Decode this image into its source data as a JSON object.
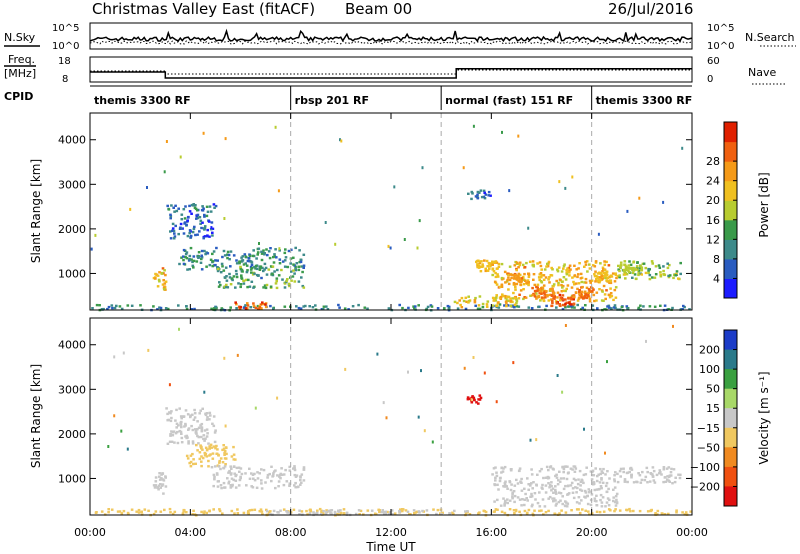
{
  "header": {
    "title": "Christmas Valley East (fitACF)",
    "beam": "Beam 00",
    "date": "26/Jul/2016"
  },
  "noise_panel": {
    "left_label": "N.Sky",
    "left_ticks": [
      "10^5",
      "10^0"
    ],
    "right_ticks": [
      "10^5",
      "10^0"
    ],
    "right_label": "N.Search"
  },
  "freq_panel": {
    "left_label_1": "Freq.",
    "left_label_2": "[MHz]",
    "left_ticks": [
      "18",
      "8"
    ],
    "right_ticks": [
      "60",
      "0"
    ],
    "right_label": "Nave"
  },
  "cpid_panel": {
    "label": "CPID",
    "segments": [
      {
        "name": "themis 3300 RF",
        "start_hour": 0,
        "end_hour": 8
      },
      {
        "name": "rbsp 201 RF",
        "start_hour": 8,
        "end_hour": 14
      },
      {
        "name": "normal (fast) 151 RF",
        "start_hour": 14,
        "end_hour": 20
      },
      {
        "name": "themis 3300 RF",
        "start_hour": 20,
        "end_hour": 24
      }
    ]
  },
  "x_axis": {
    "label": "Time UT",
    "ticks": [
      "00:00",
      "04:00",
      "08:00",
      "12:00",
      "16:00",
      "20:00",
      "00:00"
    ],
    "range_hours": [
      0,
      24
    ]
  },
  "power_colorbar": {
    "label": "Power [dB]",
    "ticks": [
      "4",
      "8",
      "12",
      "16",
      "20",
      "24",
      "28"
    ],
    "colors": [
      "#1c1cff",
      "#2a5cc0",
      "#3d8a8a",
      "#3a9a4a",
      "#b8cc30",
      "#f0c020",
      "#f59a18",
      "#f06010",
      "#e02000"
    ]
  },
  "velocity_colorbar": {
    "label": "Velocity [m s⁻¹]",
    "ticks": [
      "200",
      "100",
      "50",
      "15",
      "−15",
      "−50",
      "−100",
      "−200"
    ],
    "colors": [
      "#1c3cc8",
      "#2a7a8a",
      "#3aa040",
      "#a8d868",
      "#c8c8c8",
      "#f0c860",
      "#f08a20",
      "#f05010",
      "#e01010"
    ]
  },
  "chart_data": [
    {
      "type": "heatmap",
      "panel": "power",
      "xlabel": "Time UT",
      "ylabel": "Slant Range [km]",
      "xlim_hours": [
        0,
        24
      ],
      "ylim": [
        180,
        4600
      ],
      "yticks": [
        "1000",
        "2000",
        "3000",
        "4000"
      ],
      "colorbar": "Power [dB]",
      "regions": [
        {
          "t0": 0.0,
          "t1": 24.0,
          "r0": 200,
          "r1": 320,
          "value": 10
        },
        {
          "t0": 5.5,
          "t1": 7.0,
          "r0": 220,
          "r1": 380,
          "value": 24
        },
        {
          "t0": 14.5,
          "t1": 17.0,
          "r0": 260,
          "r1": 520,
          "value": 18
        },
        {
          "t0": 2.5,
          "t1": 3.0,
          "r0": 650,
          "r1": 1150,
          "value": 20
        },
        {
          "t0": 3.0,
          "t1": 5.0,
          "r0": 1800,
          "r1": 2600,
          "value": 8
        },
        {
          "t0": 3.5,
          "t1": 8.5,
          "r0": 1100,
          "r1": 1600,
          "value": 10
        },
        {
          "t0": 5.0,
          "t1": 8.5,
          "r0": 700,
          "r1": 1200,
          "value": 12
        },
        {
          "t0": 15.0,
          "t1": 16.0,
          "r0": 2700,
          "r1": 2900,
          "value": 8
        },
        {
          "t0": 16.0,
          "t1": 21.0,
          "r0": 400,
          "r1": 1300,
          "value": 20
        },
        {
          "t0": 21.0,
          "t1": 23.5,
          "r0": 900,
          "r1": 1300,
          "value": 14
        }
      ],
      "v_shape_track": [
        {
          "t": 15.8,
          "r": 1200,
          "value": 22
        },
        {
          "t": 17.0,
          "r": 900,
          "value": 24
        },
        {
          "t": 18.0,
          "r": 600,
          "value": 26
        },
        {
          "t": 18.8,
          "r": 420,
          "value": 28
        },
        {
          "t": 19.6,
          "r": 600,
          "value": 26
        },
        {
          "t": 20.5,
          "r": 950,
          "value": 22
        },
        {
          "t": 21.5,
          "r": 1100,
          "value": 18
        }
      ]
    },
    {
      "type": "heatmap",
      "panel": "velocity",
      "xlabel": "Time UT",
      "ylabel": "Slant Range [km]",
      "xlim_hours": [
        0,
        24
      ],
      "ylim": [
        180,
        4600
      ],
      "yticks": [
        "1000",
        "2000",
        "3000",
        "4000"
      ],
      "colorbar": "Velocity [m s⁻¹]",
      "regions": [
        {
          "t0": 0.0,
          "t1": 24.0,
          "r0": 200,
          "r1": 340,
          "value": -40
        },
        {
          "t0": 7.0,
          "t1": 15.0,
          "r0": 200,
          "r1": 320,
          "value": 0
        },
        {
          "t0": 2.5,
          "t1": 3.0,
          "r0": 650,
          "r1": 1150,
          "value": 0
        },
        {
          "t0": 3.0,
          "t1": 5.0,
          "r0": 1800,
          "r1": 2600,
          "value": 0
        },
        {
          "t0": 3.8,
          "t1": 5.8,
          "r0": 1300,
          "r1": 1800,
          "value": -40
        },
        {
          "t0": 4.8,
          "t1": 8.5,
          "r0": 800,
          "r1": 1300,
          "value": 0
        },
        {
          "t0": 15.0,
          "t1": 15.6,
          "r0": 2700,
          "r1": 2900,
          "value": -200
        },
        {
          "t0": 16.0,
          "t1": 21.0,
          "r0": 400,
          "r1": 1300,
          "value": 0
        },
        {
          "t0": 21.0,
          "t1": 23.5,
          "r0": 900,
          "r1": 1300,
          "value": 0
        }
      ]
    }
  ]
}
